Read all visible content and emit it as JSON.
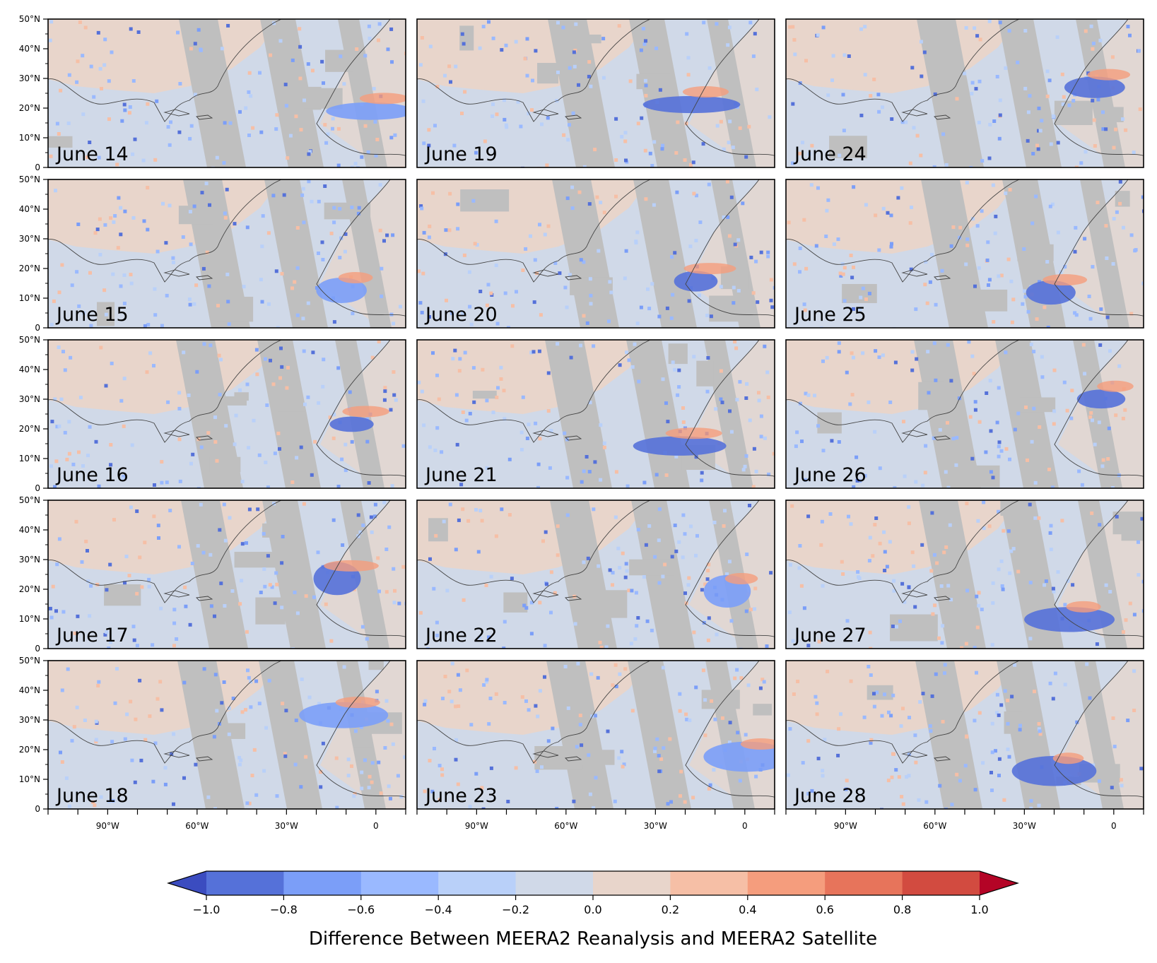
{
  "panels": [
    {
      "label": "June 14"
    },
    {
      "label": "June 19"
    },
    {
      "label": "June 24"
    },
    {
      "label": "June 15"
    },
    {
      "label": "June 20"
    },
    {
      "label": "June 25"
    },
    {
      "label": "June 16"
    },
    {
      "label": "June 21"
    },
    {
      "label": "June 26"
    },
    {
      "label": "June 17"
    },
    {
      "label": "June 22"
    },
    {
      "label": "June 27"
    },
    {
      "label": "June 18"
    },
    {
      "label": "June 23"
    },
    {
      "label": "June 28"
    }
  ],
  "lat_ticks": [
    "50°N",
    "40°N",
    "30°N",
    "20°N",
    "10°N",
    "0"
  ],
  "lon_ticks": [
    "90°W",
    "60°W",
    "30°W",
    "0"
  ],
  "map_extent": {
    "lon": [
      -110,
      10
    ],
    "lat": [
      0,
      50
    ]
  },
  "colorbar": {
    "label": "Difference Between MEERA2 Reanalysis and MEERA2 Satellite",
    "ticks": [
      "−1.0",
      "−0.8",
      "−0.6",
      "−0.4",
      "−0.2",
      "0.0",
      "0.2",
      "0.4",
      "0.6",
      "0.8",
      "1.0"
    ],
    "bins": [
      "#5571d9",
      "#7b9ef8",
      "#9ab9ff",
      "#b9d0f9",
      "#d0d9e8",
      "#e8d5cb",
      "#f6bfa6",
      "#f59d7d",
      "#e7745b",
      "#d24b40"
    ],
    "under_color": "#3b4cc0",
    "over_color": "#b40426"
  },
  "colors": {
    "no_data": "#bfbfbf",
    "coast": "#444444"
  }
}
